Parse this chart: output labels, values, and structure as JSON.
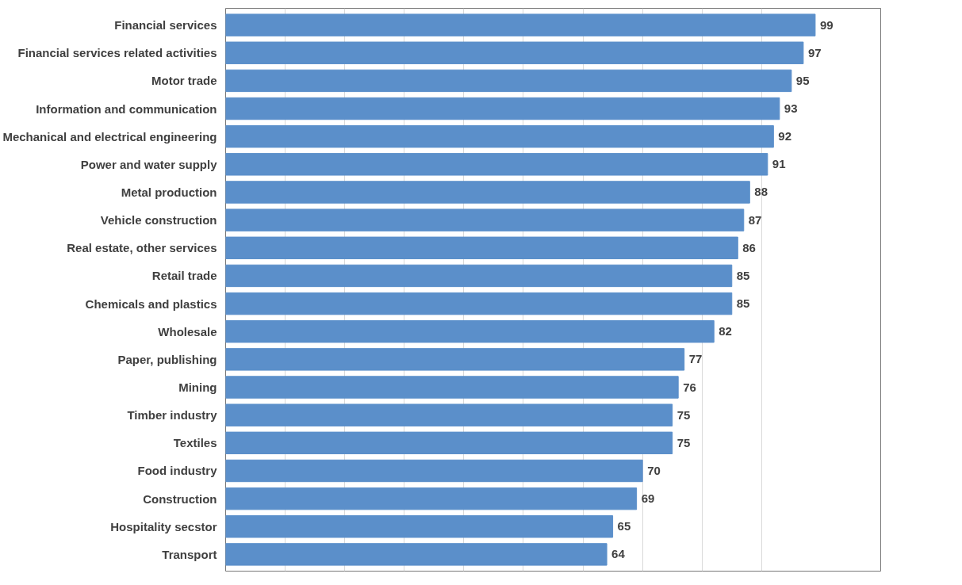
{
  "chart_data": {
    "type": "bar",
    "orientation": "horizontal",
    "categories": [
      "Financial services",
      "Financial services related activities",
      "Motor trade",
      "Information and communication",
      "Mechanical and electrical engineering",
      "Power and water supply",
      "Metal production",
      "Vehicle construction",
      "Real estate, other services",
      "Retail trade",
      "Chemicals and plastics",
      "Wholesale",
      "Paper, publishing",
      "Mining",
      "Timber industry",
      "Textiles",
      "Food industry",
      "Construction",
      "Hospitality secstor",
      "Transport"
    ],
    "values": [
      99,
      97,
      95,
      93,
      92,
      91,
      88,
      87,
      86,
      85,
      85,
      82,
      77,
      76,
      75,
      75,
      70,
      69,
      65,
      64
    ],
    "color": "#5b8fca",
    "data_labels": true,
    "grid": "x",
    "tick_labels": "y",
    "xlim": [
      0,
      110
    ],
    "xticks": [
      {
        "value": 0,
        "label": null
      },
      {
        "value": 10,
        "label": null
      },
      {
        "value": 20,
        "label": null
      },
      {
        "value": 30,
        "label": null
      },
      {
        "value": 40,
        "label": null
      },
      {
        "value": 50,
        "label": null
      },
      {
        "value": 60,
        "label": null
      },
      {
        "value": 70,
        "label": null
      },
      {
        "value": 80,
        "label": null
      },
      {
        "value": 90,
        "label": null
      }
    ]
  }
}
